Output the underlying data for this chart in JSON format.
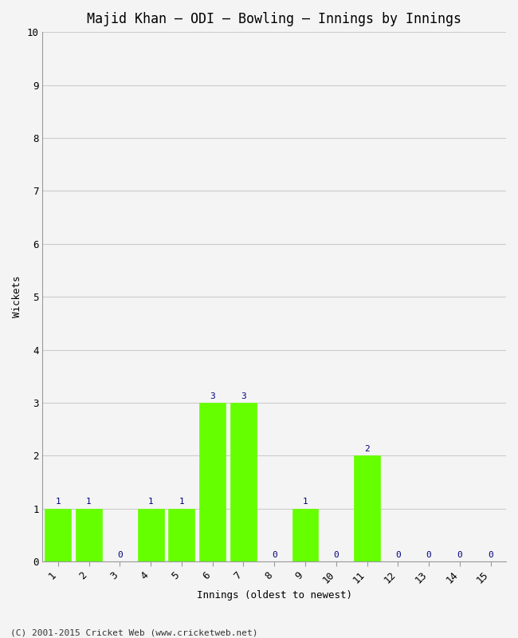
{
  "title": "Majid Khan – ODI – Bowling – Innings by Innings",
  "xlabel": "Innings (oldest to newest)",
  "ylabel": "Wickets",
  "categories": [
    1,
    2,
    3,
    4,
    5,
    6,
    7,
    8,
    9,
    10,
    11,
    12,
    13,
    14,
    15
  ],
  "values": [
    1,
    1,
    0,
    1,
    1,
    3,
    3,
    0,
    1,
    0,
    2,
    0,
    0,
    0,
    0
  ],
  "bar_color": "#66ff00",
  "bar_edge_color": "#66ff00",
  "ylim": [
    0,
    10
  ],
  "yticks": [
    0,
    1,
    2,
    3,
    4,
    5,
    6,
    7,
    8,
    9,
    10
  ],
  "label_color": "#000080",
  "background_color": "#f4f4f4",
  "grid_color": "#cccccc",
  "copyright": "(C) 2001-2015 Cricket Web (www.cricketweb.net)",
  "title_fontsize": 12,
  "axis_label_fontsize": 9,
  "tick_fontsize": 9,
  "bar_label_fontsize": 8,
  "copyright_fontsize": 8
}
